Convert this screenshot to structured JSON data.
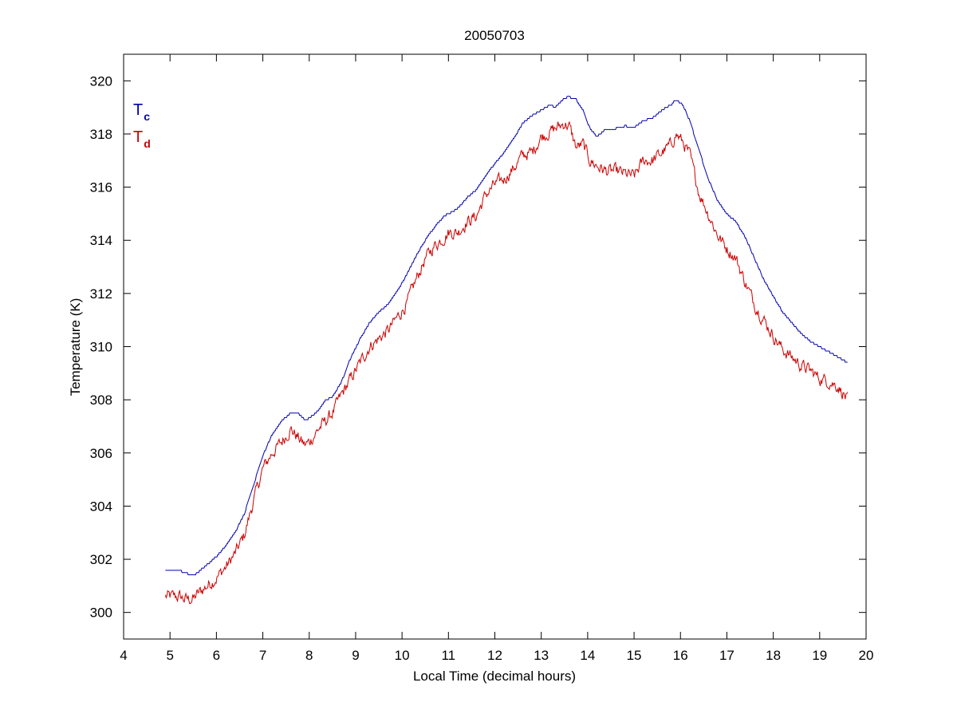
{
  "chart_data": {
    "type": "line",
    "title": "20050703",
    "xlabel": "Local Time (decimal hours)",
    "ylabel": "Temperature (K)",
    "xlim": [
      4,
      20
    ],
    "ylim": [
      299,
      321
    ],
    "xticks": [
      4,
      5,
      6,
      7,
      8,
      9,
      10,
      11,
      12,
      13,
      14,
      15,
      16,
      17,
      18,
      19,
      20
    ],
    "yticks": [
      300,
      302,
      304,
      306,
      308,
      310,
      312,
      314,
      316,
      318,
      320
    ],
    "grid": false,
    "legend_position": "top-left",
    "series": [
      {
        "name": "T",
        "subscript": "c",
        "color": "#0000b0",
        "noise": 0.0,
        "x": [
          4.9,
          5.2,
          5.3,
          5.5,
          5.6,
          5.8,
          6.0,
          6.2,
          6.4,
          6.6,
          6.8,
          7.0,
          7.2,
          7.4,
          7.6,
          7.75,
          7.9,
          8.0,
          8.2,
          8.35,
          8.5,
          8.7,
          8.9,
          9.1,
          9.3,
          9.5,
          9.7,
          9.9,
          10.1,
          10.3,
          10.5,
          10.7,
          10.9,
          11.0,
          11.2,
          11.4,
          11.6,
          11.8,
          12.0,
          12.2,
          12.4,
          12.6,
          12.8,
          13.0,
          13.2,
          13.3,
          13.5,
          13.6,
          13.75,
          13.9,
          14.05,
          14.2,
          14.4,
          14.6,
          14.8,
          15.0,
          15.2,
          15.4,
          15.6,
          15.8,
          15.9,
          16.05,
          16.2,
          16.4,
          16.6,
          16.8,
          17.0,
          17.2,
          17.4,
          17.6,
          17.8,
          18.0,
          18.2,
          18.4,
          18.6,
          18.8,
          19.0,
          19.2,
          19.4,
          19.6
        ],
        "y": [
          301.6,
          301.6,
          301.5,
          301.4,
          301.5,
          301.8,
          302.1,
          302.5,
          303.0,
          303.7,
          304.8,
          305.9,
          306.7,
          307.2,
          307.5,
          307.5,
          307.25,
          307.3,
          307.6,
          308.0,
          308.1,
          308.7,
          309.6,
          310.3,
          310.9,
          311.3,
          311.6,
          312.1,
          312.7,
          313.4,
          314.0,
          314.5,
          314.9,
          315.0,
          315.2,
          315.6,
          315.9,
          316.4,
          316.9,
          317.3,
          317.8,
          318.4,
          318.7,
          318.9,
          319.1,
          319.0,
          319.35,
          319.4,
          319.3,
          318.9,
          318.2,
          317.9,
          318.2,
          318.2,
          318.3,
          318.25,
          318.5,
          318.6,
          318.9,
          319.1,
          319.3,
          319.1,
          318.5,
          317.4,
          316.3,
          315.5,
          315.0,
          314.7,
          314.1,
          313.3,
          312.5,
          311.9,
          311.3,
          310.9,
          310.5,
          310.2,
          310.0,
          309.8,
          309.6,
          309.4
        ]
      },
      {
        "name": "T",
        "subscript": "d",
        "color": "#cc0000",
        "noise": 0.18,
        "x": [
          4.9,
          5.2,
          5.3,
          5.5,
          5.6,
          5.8,
          6.0,
          6.2,
          6.4,
          6.6,
          6.8,
          7.0,
          7.2,
          7.4,
          7.6,
          7.75,
          7.9,
          8.0,
          8.2,
          8.35,
          8.5,
          8.7,
          8.9,
          9.1,
          9.3,
          9.5,
          9.7,
          9.9,
          10.1,
          10.3,
          10.5,
          10.7,
          10.9,
          11.0,
          11.2,
          11.4,
          11.6,
          11.8,
          12.0,
          12.2,
          12.4,
          12.6,
          12.8,
          13.0,
          13.2,
          13.3,
          13.5,
          13.6,
          13.75,
          13.9,
          14.05,
          14.2,
          14.4,
          14.6,
          14.8,
          15.0,
          15.2,
          15.4,
          15.6,
          15.8,
          15.9,
          16.05,
          16.2,
          16.4,
          16.6,
          16.8,
          17.0,
          17.2,
          17.4,
          17.6,
          17.8,
          18.0,
          18.2,
          18.4,
          18.6,
          18.8,
          19.0,
          19.2,
          19.4,
          19.6
        ],
        "y": [
          300.6,
          300.6,
          300.5,
          300.5,
          300.7,
          301.0,
          301.3,
          301.7,
          302.2,
          302.9,
          304.2,
          305.4,
          306.0,
          306.4,
          306.9,
          306.6,
          306.3,
          306.4,
          306.9,
          307.2,
          307.5,
          308.2,
          308.8,
          309.4,
          310.0,
          310.3,
          310.6,
          311.1,
          311.6,
          312.5,
          313.3,
          313.8,
          314.1,
          314.3,
          314.3,
          314.7,
          314.9,
          315.7,
          316.1,
          316.3,
          316.7,
          317.2,
          317.3,
          317.9,
          318.1,
          318.2,
          318.4,
          318.3,
          317.5,
          317.6,
          317.0,
          316.8,
          316.6,
          316.6,
          316.5,
          316.4,
          317.0,
          317.0,
          317.3,
          317.6,
          318.0,
          317.7,
          317.2,
          315.8,
          315.0,
          314.2,
          313.7,
          313.3,
          312.4,
          311.6,
          311.0,
          310.4,
          309.9,
          309.6,
          309.3,
          309.1,
          308.8,
          308.7,
          308.5,
          308.0
        ]
      }
    ]
  }
}
